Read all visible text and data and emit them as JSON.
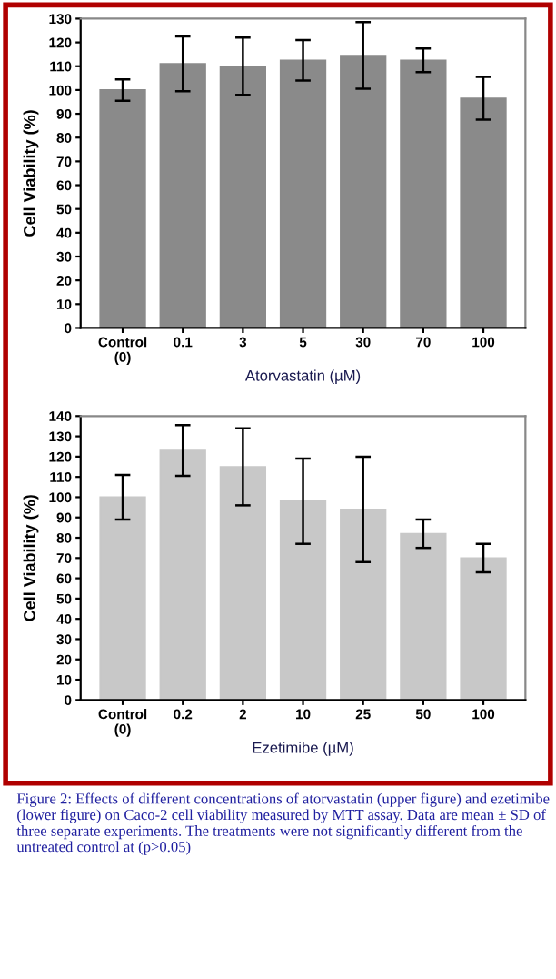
{
  "chart_data": [
    {
      "type": "bar",
      "xlabel": "Atorvastatin (µM)",
      "ylabel": "Cell Viability (%)",
      "categories": [
        "Control\n(0)",
        "0.1",
        "3",
        "5",
        "30",
        "70",
        "100"
      ],
      "values": [
        100,
        111,
        110,
        112.5,
        114.5,
        112.5,
        96.5
      ],
      "errors": [
        4.5,
        11.5,
        12,
        8.5,
        14,
        5,
        9
      ],
      "color": "#8a8a8a",
      "ylim": [
        0,
        130
      ],
      "yticks": [
        0,
        10,
        20,
        30,
        40,
        50,
        60,
        70,
        80,
        90,
        100,
        110,
        120,
        130
      ],
      "grid": false
    },
    {
      "type": "bar",
      "xlabel": "Ezetimibe (µM)",
      "ylabel": "Cell Viability (%)",
      "categories": [
        "Control\n(0)",
        "0.2",
        "2",
        "10",
        "25",
        "50",
        "100"
      ],
      "values": [
        100,
        123,
        115,
        98,
        94,
        82,
        70
      ],
      "errors": [
        11,
        12.5,
        19,
        21,
        26,
        7,
        7
      ],
      "color": "#c8c8c8",
      "ylim": [
        0,
        140
      ],
      "yticks": [
        0,
        10,
        20,
        30,
        40,
        50,
        60,
        70,
        80,
        90,
        100,
        110,
        120,
        130,
        140
      ],
      "grid": false,
      "annotations": [
        "Figure 2: Effects of different concentrations of atorvastatin (upper figure) and ezetimibe (lower figure) on Caco-2 cell viability measured by MTT assay. Data are mean ± SD of three separate experiments. The treatments were not significantly different from the untreated control at (p>0.05)"
      ]
    }
  ]
}
